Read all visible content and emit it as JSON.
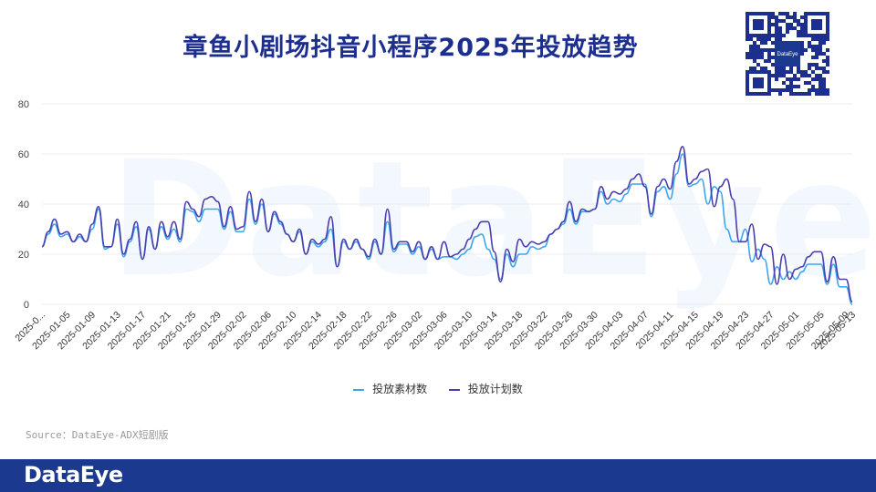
{
  "header": {
    "title": "章鱼小剧场抖音小程序2025年投放趋势",
    "qr_badge": "DataEye"
  },
  "watermark": "DataEye",
  "source": "Source：DataEye-ADX短剧版",
  "footer": {
    "brand": "DataEye"
  },
  "colors": {
    "series_1": "#3ea6f0",
    "series_2": "#4b3fb0",
    "title": "#1c2f8f",
    "footer_bg": "#1b3a8f",
    "grid": "#ececec"
  },
  "chart_data": {
    "type": "line",
    "title": "章鱼小剧场抖音小程序2025年投放趋势",
    "ylim": [
      0,
      80
    ],
    "yticks": [
      0,
      20,
      40,
      60,
      80
    ],
    "x_tick_labels": [
      "2025-0...",
      "2025-01-05",
      "2025-01-09",
      "2025-01-13",
      "2025-01-17",
      "2025-01-21",
      "2025-01-25",
      "2025-01-29",
      "2025-02-02",
      "2025-02-06",
      "2025-02-10",
      "2025-02-14",
      "2025-02-18",
      "2025-02-22",
      "2025-02-26",
      "2025-03-02",
      "2025-03-06",
      "2025-03-10",
      "2025-03-14",
      "2025-03-18",
      "2025-03-22",
      "2025-03-26",
      "2025-03-30",
      "2025-04-03",
      "2025-04-07",
      "2025-04-11",
      "2025-04-15",
      "2025-04-19",
      "2025-04-23",
      "2025-04-27",
      "2025-05-01",
      "2025-05-05",
      "2025-05-09",
      "2025-05-13"
    ],
    "grid": true,
    "legend_position": "bottom-center",
    "series": [
      {
        "name": "投放素材数",
        "values": [
          23,
          28,
          32,
          27,
          28,
          25,
          27,
          25,
          30,
          38,
          22,
          23,
          32,
          19,
          25,
          31,
          18,
          30,
          22,
          31,
          26,
          30,
          25,
          38,
          37,
          33,
          38,
          38,
          38,
          30,
          37,
          29,
          29,
          42,
          32,
          40,
          29,
          36,
          32,
          28,
          25,
          29,
          20,
          25,
          23,
          25,
          30,
          15,
          25,
          22,
          25,
          22,
          18,
          25,
          20,
          33,
          21,
          24,
          24,
          20,
          23,
          18,
          22,
          18,
          19,
          19,
          18,
          20,
          22,
          27,
          28,
          22,
          18,
          10,
          20,
          15,
          20,
          20,
          23,
          22,
          23,
          28,
          30,
          32,
          38,
          32,
          37,
          37,
          38,
          45,
          40,
          42,
          41,
          44,
          48,
          48,
          48,
          35,
          45,
          47,
          42,
          52,
          60,
          47,
          48,
          50,
          40,
          47,
          45,
          30,
          25,
          25,
          30,
          17,
          22,
          18,
          8,
          15,
          10,
          13,
          10,
          13,
          16,
          16,
          16,
          8,
          16,
          7,
          7,
          0
        ]
      },
      {
        "name": "投放计划数",
        "values": [
          23,
          29,
          34,
          28,
          29,
          25,
          28,
          25,
          32,
          39,
          23,
          23,
          34,
          20,
          26,
          33,
          18,
          31,
          22,
          33,
          27,
          33,
          26,
          41,
          38,
          35,
          42,
          43,
          41,
          31,
          39,
          30,
          31,
          45,
          33,
          42,
          29,
          37,
          33,
          28,
          25,
          30,
          20,
          26,
          24,
          26,
          35,
          15,
          26,
          22,
          26,
          22,
          19,
          26,
          20,
          38,
          22,
          25,
          25,
          21,
          25,
          18,
          23,
          18,
          25,
          19,
          20,
          22,
          26,
          30,
          33,
          33,
          21,
          9,
          22,
          17,
          26,
          23,
          25,
          24,
          25,
          28,
          30,
          33,
          41,
          33,
          38,
          37,
          38,
          47,
          42,
          45,
          44,
          46,
          50,
          52,
          47,
          36,
          47,
          50,
          46,
          57,
          63,
          48,
          50,
          53,
          54,
          39,
          47,
          50,
          42,
          25,
          25,
          32,
          18,
          24,
          23,
          8,
          20,
          10,
          14,
          15,
          19,
          21,
          21,
          9,
          19,
          10,
          10,
          1
        ]
      }
    ]
  }
}
